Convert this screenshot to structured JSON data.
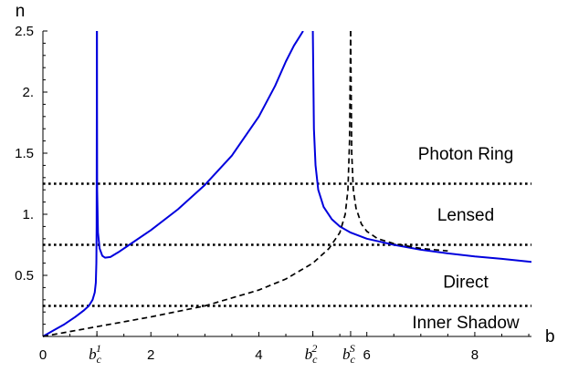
{
  "chart_data": {
    "type": "line",
    "xlabel": "b",
    "ylabel": "n",
    "xlim": [
      0,
      9.05
    ],
    "ylim": [
      0,
      2.5
    ],
    "x_ticks": [
      {
        "value": 0,
        "label": "0"
      },
      {
        "value": 2,
        "label": "2"
      },
      {
        "value": 4,
        "label": "4"
      },
      {
        "value": 6,
        "label": "6"
      },
      {
        "value": 8,
        "label": "8"
      }
    ],
    "y_ticks": [
      {
        "value": 0.5,
        "label": "0.5"
      },
      {
        "value": 1,
        "label": "1."
      },
      {
        "value": 1.5,
        "label": "1.5"
      },
      {
        "value": 2,
        "label": "2."
      },
      {
        "value": 2.5,
        "label": "2.5"
      }
    ],
    "special_x_ticks": [
      {
        "value": 1.0,
        "base": "b",
        "sub": "c",
        "sup": "1"
      },
      {
        "value": 5.0,
        "base": "b",
        "sub": "c",
        "sup": "2"
      },
      {
        "value": 5.7,
        "base": "b",
        "sub": "c",
        "sup": "S"
      }
    ],
    "horizontal_lines": [
      0.25,
      0.75,
      1.25
    ],
    "region_labels": [
      {
        "text": "Photon Ring",
        "y": 1.5
      },
      {
        "text": "Lensed",
        "y": 1.0
      },
      {
        "text": "Direct",
        "y": 0.45
      },
      {
        "text": "Inner Shadow",
        "y": 0.12
      }
    ],
    "series": [
      {
        "style": "solid",
        "color": "#0000dd",
        "segments": [
          {
            "x": [
              0,
              0.2,
              0.4,
              0.6,
              0.75,
              0.85,
              0.92,
              0.96,
              0.98,
              0.99,
              0.995,
              1.0
            ],
            "y": [
              0,
              0.05,
              0.1,
              0.16,
              0.21,
              0.25,
              0.3,
              0.36,
              0.44,
              0.6,
              0.9,
              2.5
            ]
          },
          {
            "x": [
              1.0,
              1.005,
              1.02,
              1.05,
              1.1,
              1.15,
              1.25,
              1.4,
              1.6,
              2.0,
              2.5,
              3.0,
              3.5,
              4.0,
              4.3,
              4.5,
              4.65,
              4.75,
              4.82
            ],
            "y": [
              2.5,
              1.2,
              0.85,
              0.72,
              0.66,
              0.645,
              0.65,
              0.69,
              0.75,
              0.87,
              1.04,
              1.24,
              1.48,
              1.8,
              2.05,
              2.25,
              2.38,
              2.45,
              2.5
            ]
          },
          {
            "x": [
              5.0,
              5.02,
              5.05,
              5.1,
              5.2,
              5.35,
              5.5,
              5.7,
              6.0,
              6.5,
              7.0,
              7.5,
              8.0,
              8.5,
              9.05
            ],
            "y": [
              2.5,
              1.7,
              1.4,
              1.2,
              1.06,
              0.96,
              0.9,
              0.85,
              0.8,
              0.75,
              0.71,
              0.68,
              0.655,
              0.635,
              0.61
            ]
          }
        ]
      },
      {
        "style": "dashed",
        "color": "#000000",
        "segments": [
          {
            "x": [
              0,
              1.0,
              2.0,
              3.0,
              4.0,
              4.5,
              5.0,
              5.3,
              5.5,
              5.6,
              5.65,
              5.68,
              5.7
            ],
            "y": [
              0,
              0.08,
              0.16,
              0.25,
              0.38,
              0.47,
              0.6,
              0.72,
              0.85,
              1.0,
              1.2,
              1.6,
              2.5
            ]
          },
          {
            "x": [
              5.7,
              5.72,
              5.75,
              5.8,
              5.9,
              6.0,
              6.2,
              6.5,
              7.0,
              7.5
            ],
            "y": [
              2.5,
              1.5,
              1.2,
              1.05,
              0.92,
              0.86,
              0.8,
              0.76,
              0.72,
              0.7
            ]
          }
        ]
      }
    ]
  }
}
